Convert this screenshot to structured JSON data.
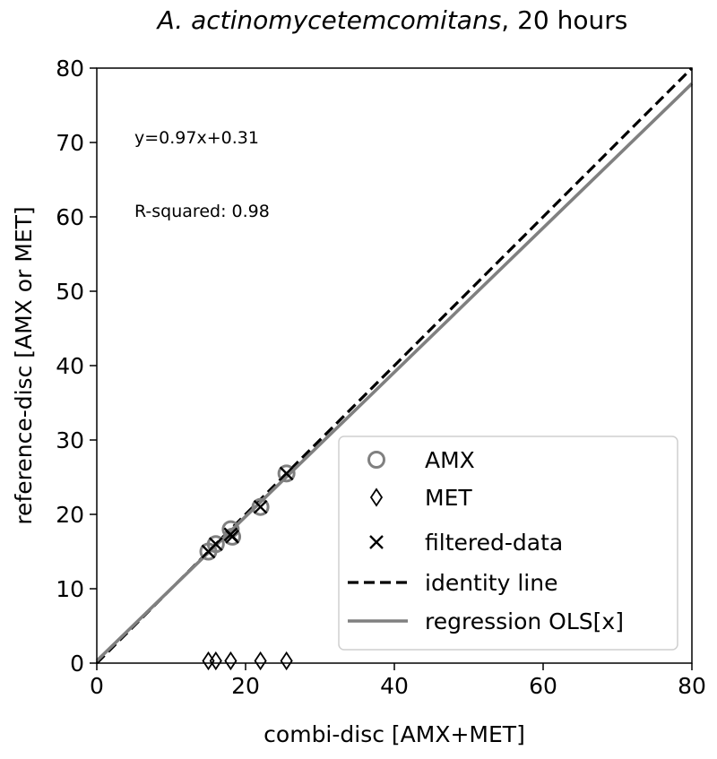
{
  "chart_data": {
    "type": "scatter",
    "title_species": "A. actinomycetemcomitans",
    "title_suffix": ", 20 hours",
    "xlabel": "combi-disc  [AMX+MET]",
    "ylabel": "reference-disc [AMX or MET]",
    "xlim": [
      0,
      80
    ],
    "ylim": [
      0,
      80
    ],
    "xticks": [
      0,
      20,
      40,
      60,
      80
    ],
    "yticks": [
      0,
      10,
      20,
      30,
      40,
      50,
      60,
      70,
      80
    ],
    "grid": false,
    "legend_position": "lower-right",
    "annotations": {
      "equation": "y=0.97x+0.31",
      "r_squared": "R-squared:  0.98"
    },
    "series": [
      {
        "name": "AMX",
        "marker": "circle",
        "color": "#808080",
        "x": [
          15.0,
          16.0,
          18.0,
          18.2,
          22.0,
          25.5
        ],
        "y": [
          15.0,
          16.0,
          18.0,
          17.0,
          21.0,
          25.5
        ]
      },
      {
        "name": "MET",
        "marker": "diamond",
        "color": "#000000",
        "x": [
          15.0,
          16.0,
          18.0,
          22.0,
          25.5
        ],
        "y": [
          0.3,
          0.3,
          0.3,
          0.3,
          0.3
        ]
      },
      {
        "name": "filtered-data",
        "marker": "x",
        "color": "#000000",
        "x": [
          15.0,
          16.0,
          18.0,
          18.2,
          22.0,
          25.5
        ],
        "y": [
          15.0,
          16.0,
          17.3,
          17.0,
          21.0,
          25.5
        ]
      },
      {
        "name": "identity line",
        "line": "dashed",
        "color": "#000000",
        "x": [
          0,
          80
        ],
        "y": [
          0,
          80
        ]
      },
      {
        "name": "regression OLS[x]",
        "line": "solid",
        "color": "#808080",
        "x": [
          0,
          80
        ],
        "y": [
          0.31,
          77.91
        ]
      }
    ]
  }
}
